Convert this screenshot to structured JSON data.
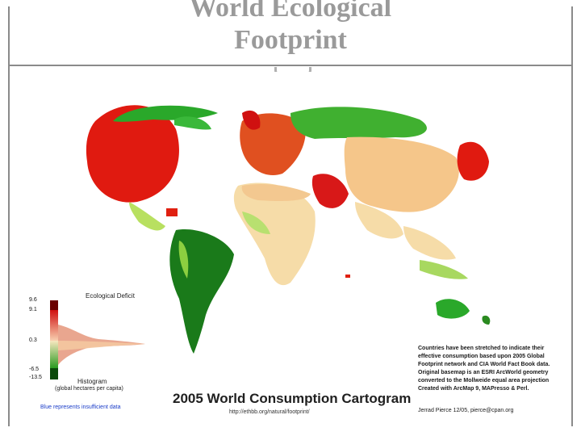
{
  "slide": {
    "title": "World Ecological\nFootprint"
  },
  "map": {
    "title": "2005 World Consumption Cartogram",
    "url": "http://ethbb.org/natural/footprint/",
    "notes": "Countries have been stretched to indicate their\neffective consumption based upon 2005 Global\nFootprint network and CIA World Fact Book data.\nOriginal basemap is an ESRI ArcWorld geometry\nconverted to the Mollweide equal area projection\nCreated with ArcMap 9, MAPresso & Perl.",
    "credit": "Jerrad Pierce 12/05, pierce@cpan.org"
  },
  "legend": {
    "title": "Ecological Deficit",
    "ticks": [
      "9.6",
      "9.1",
      "0.3",
      "-6.5",
      "-13.5"
    ],
    "histogram_label": "Histogram",
    "histogram_units": "(global hectares per capita)",
    "insufficient_note": "Blue represents insufficient data",
    "colors": {
      "deficit_high": "#8b0000",
      "deficit": "#e02010",
      "mid": "#f8d8a0",
      "reserve": "#2a8a20",
      "reserve_high": "#0a4a0a",
      "no_data": "#1a2a8a"
    }
  }
}
